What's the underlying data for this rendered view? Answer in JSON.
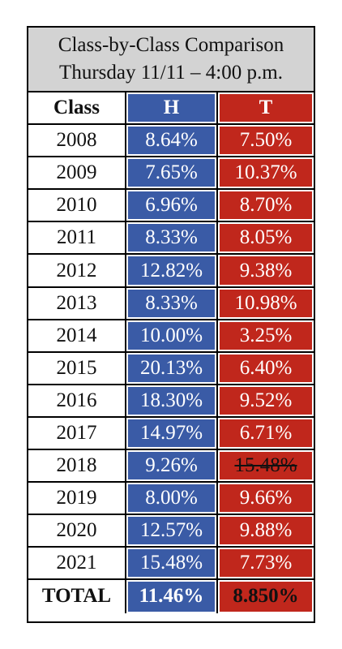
{
  "header": {
    "title": [
      "Class-by-Class Comparison",
      "Thursday 11/11 – 4:00 p.m."
    ]
  },
  "table": {
    "columns": [
      "Class",
      "H",
      "T"
    ],
    "rows": [
      [
        "2008",
        "8.64%",
        "7.50%"
      ],
      [
        "2009",
        "7.65%",
        "10.37%"
      ],
      [
        "2010",
        "6.96%",
        "8.70%"
      ],
      [
        "2011",
        "8.33%",
        "8.05%"
      ],
      [
        "2012",
        "12.82%",
        "9.38%"
      ],
      [
        "2013",
        "8.33%",
        "10.98%"
      ],
      [
        "2014",
        "10.00%",
        "3.25%"
      ],
      [
        "2015",
        "20.13%",
        "6.40%"
      ],
      [
        "2016",
        "18.30%",
        "9.52%"
      ],
      [
        "2017",
        "14.97%",
        "6.71%"
      ],
      [
        "2018",
        "9.26%",
        "15.48%"
      ],
      [
        "2019",
        "8.00%",
        "9.66%"
      ],
      [
        "2020",
        "12.57%",
        "9.88%"
      ],
      [
        "2021",
        "15.48%",
        "7.73%"
      ]
    ],
    "total": [
      "TOTAL",
      "11.46%",
      "8.850%"
    ]
  }
}
